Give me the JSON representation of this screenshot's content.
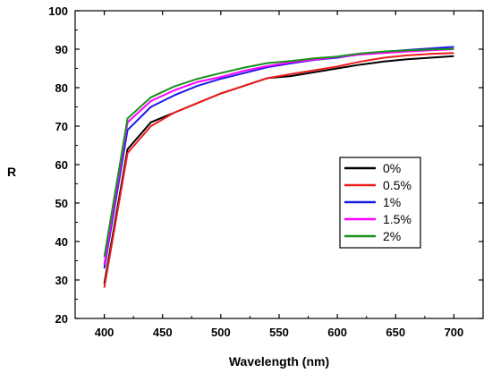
{
  "chart_data": {
    "type": "line",
    "title": "",
    "xlabel": "Wavelength (nm)",
    "ylabel": "R",
    "xlim": [
      375,
      725
    ],
    "ylim": [
      20,
      100
    ],
    "xticks": [
      400,
      450,
      500,
      550,
      600,
      650,
      700
    ],
    "yticks": [
      20,
      30,
      40,
      50,
      60,
      70,
      80,
      90,
      100
    ],
    "grid": false,
    "legend_position": "right-middle",
    "x": [
      400,
      420,
      440,
      460,
      480,
      500,
      520,
      540,
      560,
      580,
      600,
      620,
      640,
      660,
      680,
      700
    ],
    "series": [
      {
        "name": "0%",
        "color": "#000000",
        "values": [
          29,
          64,
          71,
          73.5,
          76,
          78.5,
          80.5,
          82.5,
          83,
          84,
          85,
          86,
          86.8,
          87.4,
          87.8,
          88.2
        ]
      },
      {
        "name": "0.5%",
        "color": "#ee1c1c",
        "values": [
          28,
          63,
          70,
          73.5,
          76,
          78.5,
          80.5,
          82.5,
          83.5,
          84.5,
          85.5,
          86.8,
          87.8,
          88.4,
          88.8,
          89
        ]
      },
      {
        "name": "1%",
        "color": "#1a1ae8",
        "values": [
          33,
          69,
          75,
          78,
          80.5,
          82.3,
          83.8,
          85.3,
          86.3,
          87.2,
          87.8,
          88.7,
          89.3,
          89.8,
          90.2,
          90.6
        ]
      },
      {
        "name": "1.5%",
        "color": "#ff00ff",
        "values": [
          34,
          71,
          76.5,
          79.3,
          81.5,
          82.8,
          84.4,
          85.6,
          86.6,
          87.3,
          88,
          88.6,
          89,
          89.4,
          89.7,
          90
        ]
      },
      {
        "name": "2%",
        "color": "#18911c",
        "values": [
          36,
          72,
          77.5,
          80.3,
          82.3,
          83.8,
          85.2,
          86.4,
          86.9,
          87.6,
          88.1,
          88.9,
          89.4,
          89.7,
          89.9,
          90.1
        ]
      }
    ]
  }
}
